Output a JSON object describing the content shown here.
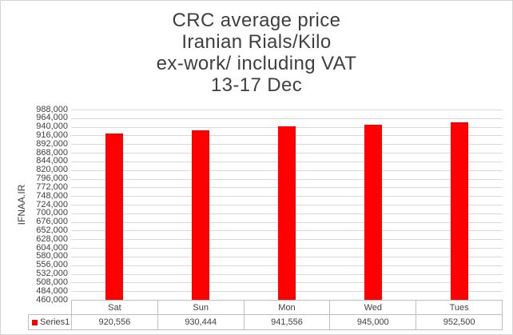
{
  "title": {
    "lines": [
      "CRC average price",
      "Iranian Rials/Kilo",
      "ex-work/ including VAT",
      "13-17 Dec"
    ]
  },
  "y_axis": {
    "title": "IFNAA.IR",
    "tick_labels": [
      "988,000",
      "964,000",
      "940,000",
      "916,000",
      "892,000",
      "868,000",
      "844,000",
      "820,000",
      "796,000",
      "772,000",
      "748,000",
      "724,000",
      "700,000",
      "676,000",
      "652,000",
      "628,000",
      "604,000",
      "580,000",
      "556,000",
      "532,000",
      "508,000",
      "484,000",
      "460,000"
    ]
  },
  "legend": {
    "label": "Series1"
  },
  "data_table": {
    "categories": [
      "Sat",
      "Sun",
      "Mon",
      "Wed",
      "Tues"
    ],
    "values": [
      "920,556",
      "930,444",
      "941,556",
      "945,000",
      "952,500"
    ]
  },
  "chart_data": {
    "type": "bar",
    "title": "CRC average price Iranian Rials/Kilo ex-work/ including VAT 13-17 Dec",
    "categories": [
      "Sat",
      "Sun",
      "Mon",
      "Wed",
      "Tues"
    ],
    "series": [
      {
        "name": "Series1",
        "values": [
          920556,
          930444,
          941556,
          945000,
          952500
        ]
      }
    ],
    "xlabel": "",
    "ylabel": "IFNAA.IR",
    "ylim": [
      460000,
      988000
    ],
    "ytick_step": 24000,
    "grid": true,
    "legend_position": "bottom-data-table",
    "bar_color": "#FF0000"
  },
  "colors": {
    "bar": "#FF0000",
    "gridline": "#D9D9D9",
    "table_border": "#BFBFBF",
    "text": "#404040",
    "title_text": "#3F3F3F",
    "chart_border": "#D5D5D5"
  }
}
